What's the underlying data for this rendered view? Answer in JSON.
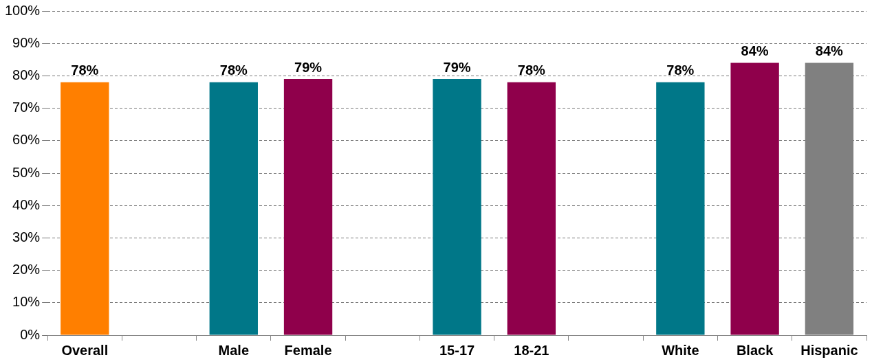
{
  "chart_data": {
    "type": "bar",
    "categories": [
      "Overall",
      null,
      "Male",
      "Female",
      null,
      "15-17",
      "18-21",
      null,
      "White",
      "Black",
      "Hispanic"
    ],
    "values": [
      78,
      null,
      78,
      79,
      null,
      79,
      78,
      null,
      78,
      84,
      84
    ],
    "colors": [
      "#ff7f00",
      null,
      "#007788",
      "#8f004b",
      null,
      "#007788",
      "#8f004b",
      null,
      "#007788",
      "#8f004b",
      "#808080"
    ],
    "value_labels": [
      "78%",
      null,
      "78%",
      "79%",
      null,
      "79%",
      "78%",
      null,
      "78%",
      "84%",
      "84%"
    ],
    "ylim": [
      0,
      100
    ],
    "yticks": [
      {
        "value": 0,
        "label": "0%"
      },
      {
        "value": 10,
        "label": "10%"
      },
      {
        "value": 20,
        "label": "20%"
      },
      {
        "value": 30,
        "label": "30%"
      },
      {
        "value": 40,
        "label": "40%"
      },
      {
        "value": 50,
        "label": "50%"
      },
      {
        "value": 60,
        "label": "60%"
      },
      {
        "value": 70,
        "label": "70%"
      },
      {
        "value": 80,
        "label": "80%"
      },
      {
        "value": 90,
        "label": "90%"
      },
      {
        "value": 100,
        "label": "100%"
      }
    ],
    "grid": "y",
    "legend": false
  }
}
